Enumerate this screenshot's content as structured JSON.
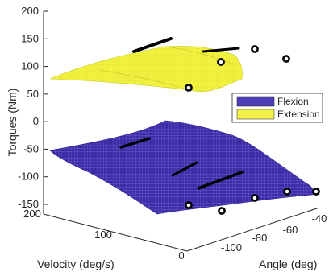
{
  "chart_data": {
    "type": "surface3d",
    "title": "",
    "zlabel": "Torques (Nm)",
    "xlabel": "Velocity (deg/s)",
    "ylabel": "Angle (deg)",
    "zlim": [
      -150,
      200
    ],
    "z_ticks": [
      "200",
      "150",
      "100",
      "50",
      "0",
      "-50",
      "-100",
      "-150"
    ],
    "velocity_ticks": [
      "200",
      "100",
      "0"
    ],
    "angle_ticks": [
      "-40",
      "-60",
      "-80",
      "-100"
    ],
    "legend": {
      "position": "right",
      "entries": [
        {
          "name": "Flexion",
          "color": "#4b3fb8"
        },
        {
          "name": "Extension",
          "color": "#f2f24a"
        }
      ]
    },
    "colors": {
      "flexion_fill": "#3c2da6",
      "flexion_mesh": "#6f66d6",
      "extension_fill": "#efef38",
      "extension_mesh": "#d9d93a",
      "axis": "#262626",
      "measured_points": "#000000"
    },
    "series": [
      {
        "name": "Flexion",
        "z_range": [
          -150,
          -50
        ]
      },
      {
        "name": "Extension",
        "z_range": [
          55,
          140
        ]
      }
    ]
  }
}
